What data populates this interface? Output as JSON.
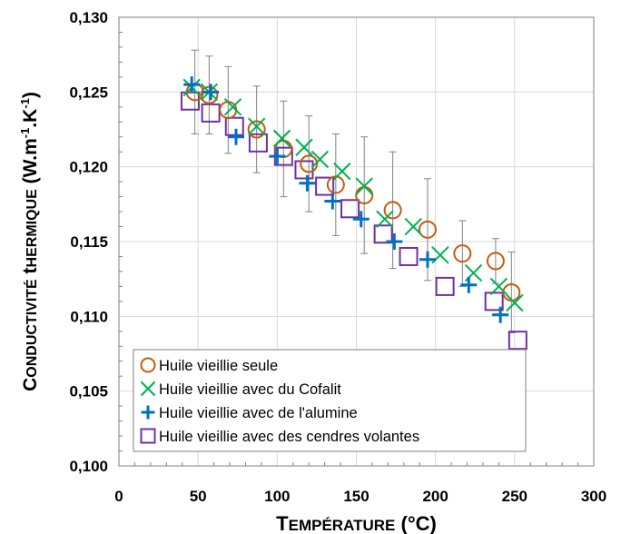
{
  "chart_data": {
    "type": "scatter",
    "xlabel": "Température (°C)",
    "ylabel": "Conductivité thermique (W.m-1.K-1)",
    "xlim": [
      0,
      300
    ],
    "ylim": [
      0.1,
      0.13
    ],
    "x_ticks": [
      "0",
      "50",
      "100",
      "150",
      "200",
      "250",
      "300"
    ],
    "y_ticks": [
      "0,100",
      "0,105",
      "0,110",
      "0,115",
      "0,120",
      "0,125",
      "0,130"
    ],
    "grid": true,
    "legend_position": "bottom-left",
    "series": [
      {
        "name": "Huile vieillie seule",
        "marker": "circle",
        "color": "#C55A11",
        "x": [
          48,
          57,
          69,
          87,
          104,
          120,
          137,
          155,
          173,
          195,
          217,
          238,
          248
        ],
        "y": [
          0.125,
          0.1248,
          0.1238,
          0.1225,
          0.1212,
          0.1202,
          0.1188,
          0.1181,
          0.1171,
          0.1158,
          0.1142,
          0.1137,
          0.1116
        ],
        "error": [
          0.0028,
          0.0026,
          0.0029,
          0.0029,
          0.0032,
          0.0032,
          0.0034,
          0.0039,
          0.0039,
          0.0034,
          0.0022,
          0.0015,
          0.0027
        ]
      },
      {
        "name": "Huile vieillie avec du Cofalit",
        "marker": "x",
        "color": "#00B050",
        "x": [
          46,
          57,
          72,
          87,
          103,
          117,
          127,
          141,
          155,
          168,
          186,
          203,
          224,
          240,
          250
        ],
        "y": [
          0.1253,
          0.125,
          0.124,
          0.1227,
          0.1219,
          0.1213,
          0.1205,
          0.1197,
          0.1187,
          0.1165,
          0.116,
          0.1141,
          0.1129,
          0.112,
          0.1109
        ],
        "error": []
      },
      {
        "name": "Huile vieillie avec de l'alumine",
        "marker": "plus",
        "color": "#0070C0",
        "x": [
          46,
          58,
          74,
          100,
          119,
          135,
          153,
          174,
          195,
          221,
          241
        ],
        "y": [
          0.1255,
          0.125,
          0.122,
          0.1207,
          0.1189,
          0.1177,
          0.1165,
          0.115,
          0.1138,
          0.1121,
          0.1101
        ],
        "error": []
      },
      {
        "name": "Huile vieillie avec des cendres volantes",
        "marker": "square",
        "color": "#7030A0",
        "x": [
          45,
          58,
          73,
          88,
          104,
          117,
          130,
          146,
          167,
          183,
          206,
          237,
          252
        ],
        "y": [
          0.1244,
          0.1236,
          0.1227,
          0.1216,
          0.1207,
          0.1198,
          0.1187,
          0.1172,
          0.1155,
          0.114,
          0.112,
          0.111,
          0.1084
        ],
        "error": []
      }
    ]
  }
}
